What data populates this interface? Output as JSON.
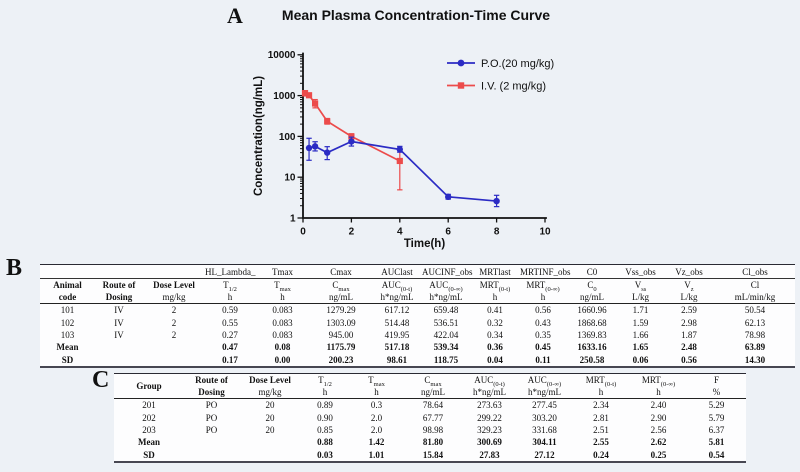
{
  "page": {
    "panel_a": "A",
    "panel_b": "B",
    "panel_c": "C",
    "background": "#edf1f6"
  },
  "chart_data": {
    "type": "line",
    "title": "Mean Plasma Concentration-Time Curve",
    "xlabel": "Time(h)",
    "ylabel": "Concentration(ng/mL)",
    "x_ticks": [
      0,
      2,
      4,
      6,
      8,
      10
    ],
    "y_ticks": [
      1,
      10,
      100,
      1000,
      10000
    ],
    "xlim": [
      0,
      10
    ],
    "ylim": [
      1,
      10000
    ],
    "y_scale": "log",
    "legend_position": "top-right",
    "grid": false,
    "series": [
      {
        "name": "I.V. (2 mg/kg)",
        "marker": "square",
        "color": "#ec4b4b",
        "x": [
          0.083,
          0.25,
          0.5,
          1,
          2,
          4
        ],
        "y": [
          1150,
          1020,
          640,
          235,
          100,
          25
        ],
        "err_lo": [
          980,
          900,
          500,
          200,
          86,
          4.9
        ],
        "err_hi": [
          1320,
          1150,
          800,
          275,
          116,
          47
        ]
      },
      {
        "name": "P.O.(20 mg/kg)",
        "marker": "circle",
        "color": "#2b2bc4",
        "x": [
          0.25,
          0.5,
          1,
          2,
          4,
          6,
          8
        ],
        "y": [
          52,
          57,
          40,
          75,
          48,
          3.3,
          2.6
        ],
        "err_lo": [
          26,
          44,
          27,
          58,
          41,
          2.9,
          1.9
        ],
        "err_hi": [
          90,
          74,
          56,
          96,
          57,
          3.8,
          3.6
        ]
      }
    ],
    "legend_order": [
      "P.O.(20 mg/kg)",
      "I.V. (2 mg/kg)"
    ]
  },
  "table_b": {
    "widths": [
      55,
      48,
      62,
      50,
      55,
      62,
      50,
      48,
      50,
      46,
      52,
      45,
      52,
      80
    ],
    "group_row": [
      "",
      "",
      "",
      "HL_Lambda_",
      "Tmax",
      "Cmax",
      "AUClast",
      "AUCINF_obs",
      "MRTlast",
      "MRTINF_obs",
      "C0",
      "Vss_obs",
      "Vz_obs",
      "Cl_obs"
    ],
    "headers": [
      {
        "l1": {
          "t": "Animal",
          "b": 1
        },
        "l2": {
          "t": "code",
          "b": 1
        }
      },
      {
        "l1": {
          "t": "Route of",
          "b": 1
        },
        "l2": {
          "t": "Dosing",
          "b": 1
        }
      },
      {
        "l1": {
          "t": "Dose Level",
          "b": 1
        },
        "l2": {
          "t": "mg/kg"
        }
      },
      {
        "l1": {
          "t": "T",
          "sub": "1/2"
        },
        "l2": {
          "t": "h"
        }
      },
      {
        "l1": {
          "t": "T",
          "sub": "max"
        },
        "l2": {
          "t": "h"
        }
      },
      {
        "l1": {
          "t": "C",
          "sub": "max"
        },
        "l2": {
          "t": "ng/mL"
        }
      },
      {
        "l1": {
          "t": "AUC",
          "sub": "(0-t)"
        },
        "l2": {
          "t": "h*ng/mL"
        }
      },
      {
        "l1": {
          "t": "AUC",
          "sub": "(0-∞)"
        },
        "l2": {
          "t": "h*ng/mL"
        }
      },
      {
        "l1": {
          "t": "MRT",
          "sub": "(0-t)"
        },
        "l2": {
          "t": "h"
        }
      },
      {
        "l1": {
          "t": "MRT",
          "sub": "(0-∞)"
        },
        "l2": {
          "t": "h"
        }
      },
      {
        "l1": {
          "t": "C",
          "sub": "0"
        },
        "l2": {
          "t": "ng/mL"
        }
      },
      {
        "l1": {
          "t": "V",
          "sub": "ss"
        },
        "l2": {
          "t": "L/kg"
        }
      },
      {
        "l1": {
          "t": "V",
          "sub": "z"
        },
        "l2": {
          "t": "L/kg"
        }
      },
      {
        "l1": {
          "t": "Cl"
        },
        "l2": {
          "t": "mL/min/kg"
        }
      }
    ],
    "rows": [
      {
        "c": [
          "101",
          "IV",
          "2",
          "0.59",
          "0.083",
          "1279.29",
          "617.12",
          "659.48",
          "0.41",
          "0.56",
          "1660.96",
          "1.71",
          "2.59",
          "50.54"
        ],
        "b": 0
      },
      {
        "c": [
          "102",
          "IV",
          "2",
          "0.55",
          "0.083",
          "1303.09",
          "514.48",
          "536.51",
          "0.32",
          "0.43",
          "1868.68",
          "1.59",
          "2.98",
          "62.13"
        ],
        "b": 0
      },
      {
        "c": [
          "103",
          "IV",
          "2",
          "0.27",
          "0.083",
          "945.00",
          "419.95",
          "422.04",
          "0.34",
          "0.35",
          "1369.83",
          "1.66",
          "1.87",
          "78.98"
        ],
        "b": 0
      },
      {
        "c": [
          "Mean",
          "",
          "",
          "0.47",
          "0.08",
          "1175.79",
          "517.18",
          "539.34",
          "0.36",
          "0.45",
          "1633.16",
          "1.65",
          "2.48",
          "63.89"
        ],
        "b": 1
      },
      {
        "c": [
          "SD",
          "",
          "",
          "0.17",
          "0.00",
          "200.23",
          "98.61",
          "118.75",
          "0.04",
          "0.11",
          "250.58",
          "0.06",
          "0.56",
          "14.30"
        ],
        "b": 1
      }
    ]
  },
  "table_c": {
    "widths": [
      70,
      55,
      62,
      48,
      55,
      58,
      55,
      55,
      58,
      57,
      59
    ],
    "headers": [
      {
        "l1": {
          "t": "Group",
          "b": 1
        }
      },
      {
        "l1": {
          "t": "Route of",
          "b": 1
        },
        "l2": {
          "t": "Dosing",
          "b": 1
        }
      },
      {
        "l1": {
          "t": "Dose Level",
          "b": 1
        },
        "l2": {
          "t": "mg/kg"
        }
      },
      {
        "l1": {
          "t": "T",
          "sub": "1/2"
        },
        "l2": {
          "t": "h"
        }
      },
      {
        "l1": {
          "t": "T",
          "sub": "max"
        },
        "l2": {
          "t": "h"
        }
      },
      {
        "l1": {
          "t": "C",
          "sub": "max"
        },
        "l2": {
          "t": "ng/mL"
        }
      },
      {
        "l1": {
          "t": "AUC",
          "sub": "(0-t)"
        },
        "l2": {
          "t": "h*ng/mL"
        }
      },
      {
        "l1": {
          "t": "AUC",
          "sub": "(0-∞)"
        },
        "l2": {
          "t": "h*ng/mL"
        }
      },
      {
        "l1": {
          "t": "MRT",
          "sub": "(0-t)"
        },
        "l2": {
          "t": "h"
        }
      },
      {
        "l1": {
          "t": "MRT",
          "sub": "(0-∞)"
        },
        "l2": {
          "t": "h"
        }
      },
      {
        "l1": {
          "t": "F"
        },
        "l2": {
          "t": "%"
        }
      }
    ],
    "rows": [
      {
        "c": [
          "201",
          "PO",
          "20",
          "0.89",
          "0.3",
          "78.64",
          "273.63",
          "277.45",
          "2.34",
          "2.40",
          "5.29"
        ],
        "b": 0
      },
      {
        "c": [
          "202",
          "PO",
          "20",
          "0.90",
          "2.0",
          "67.77",
          "299.22",
          "303.20",
          "2.81",
          "2.90",
          "5.79"
        ],
        "b": 0
      },
      {
        "c": [
          "203",
          "PO",
          "20",
          "0.85",
          "2.0",
          "98.98",
          "329.23",
          "331.68",
          "2.51",
          "2.56",
          "6.37"
        ],
        "b": 0
      },
      {
        "c": [
          "Mean",
          "",
          "",
          "0.88",
          "1.42",
          "81.80",
          "300.69",
          "304.11",
          "2.55",
          "2.62",
          "5.81"
        ],
        "b": 1
      },
      {
        "c": [
          "SD",
          "",
          "",
          "0.03",
          "1.01",
          "15.84",
          "27.83",
          "27.12",
          "0.24",
          "0.25",
          "0.54"
        ],
        "b": 1
      }
    ]
  }
}
